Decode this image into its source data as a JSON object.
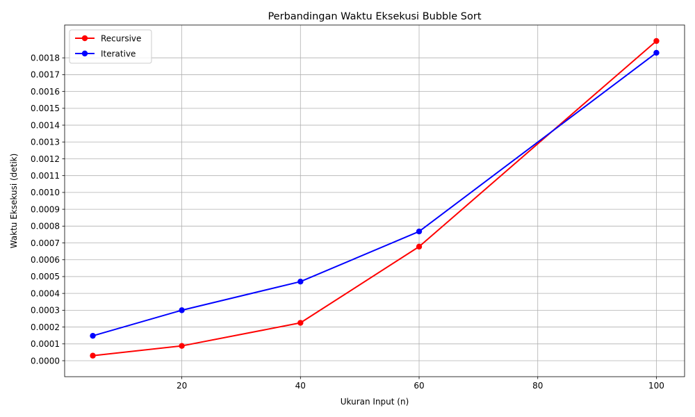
{
  "chart_data": {
    "type": "line",
    "title": "Perbandingan Waktu Eksekusi Bubble Sort",
    "xlabel": "Ukuran Input (n)",
    "ylabel": "Waktu Eksekusi (detik)",
    "x": [
      5,
      20,
      40,
      60,
      100
    ],
    "series": [
      {
        "name": "Recursive",
        "color": "#ff0000",
        "values": [
          3e-05,
          8.8e-05,
          0.000225,
          0.000678,
          0.0019
        ]
      },
      {
        "name": "Iterative",
        "color": "#0000ff",
        "values": [
          0.000148,
          0.0003,
          0.00047,
          0.000768,
          0.00183
        ]
      }
    ],
    "xlim": [
      0.25,
      104.75
    ],
    "ylim": [
      -9.5e-05,
      0.001995
    ],
    "x_ticks": [
      20,
      40,
      60,
      80,
      100
    ],
    "x_tick_labels": [
      "20",
      "40",
      "60",
      "80",
      "100"
    ],
    "y_ticks": [
      0,
      0.0001,
      0.0002,
      0.0003,
      0.0004,
      0.0005,
      0.0006,
      0.0007,
      0.0008,
      0.0009,
      0.001,
      0.0011,
      0.0012,
      0.0013,
      0.0014,
      0.0015,
      0.0016,
      0.0017,
      0.0018
    ],
    "y_tick_labels": [
      "0.0000",
      "0.0001",
      "0.0002",
      "0.0003",
      "0.0004",
      "0.0005",
      "0.0006",
      "0.0007",
      "0.0008",
      "0.0009",
      "0.0010",
      "0.0011",
      "0.0012",
      "0.0013",
      "0.0014",
      "0.0015",
      "0.0016",
      "0.0017",
      "0.0018"
    ],
    "grid": true,
    "legend_position": "top-left"
  }
}
